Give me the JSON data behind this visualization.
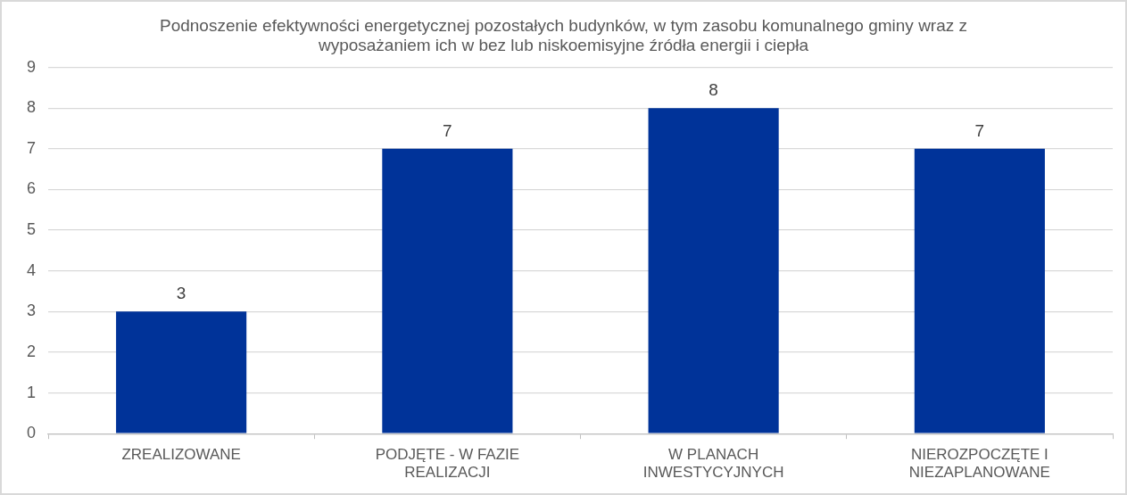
{
  "chart_data": {
    "type": "bar",
    "title": "Podnoszenie efektywności energetycznej pozostałych budynków, w tym zasobu komunalnego gminy wraz z wyposażaniem ich w bez lub niskoemisyjne źródła energii i ciepła",
    "categories": [
      "ZREALIZOWANE",
      "PODJĘTE - W FAZIE REALIZACJI",
      "W PLANACH INWESTYCYJNYCH",
      "NIEROZPOCZĘTE I NIEZAPLANOWANE"
    ],
    "values": [
      3,
      7,
      8,
      7
    ],
    "color": "#003399",
    "ylim": [
      0,
      9
    ],
    "yticks": [
      0,
      1,
      2,
      3,
      4,
      5,
      6,
      7,
      8,
      9
    ],
    "grid": "y",
    "data_labels": true,
    "legend": false
  }
}
